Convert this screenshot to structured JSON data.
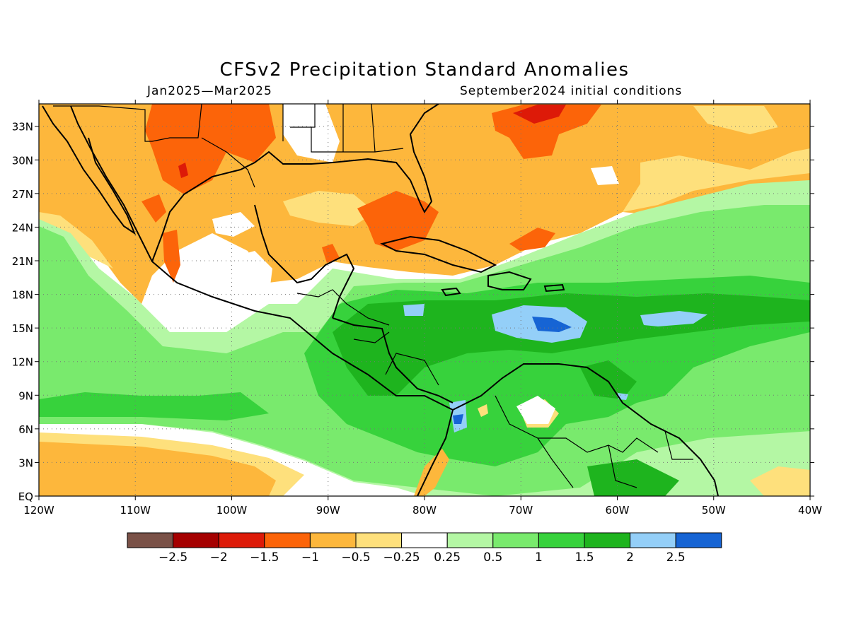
{
  "title": "CFSv2 Precipitation Standard Anomalies",
  "period": "Jan2025—Mar2025",
  "init": "September2024 initial conditions",
  "map": {
    "lon_range": [
      -120,
      -40
    ],
    "lat_range": [
      0,
      35
    ],
    "lat_ticks": [
      "33N",
      "30N",
      "27N",
      "24N",
      "21N",
      "18N",
      "15N",
      "12N",
      "9N",
      "6N",
      "3N",
      "EQ"
    ],
    "lon_ticks": [
      "120W",
      "110W",
      "100W",
      "90W",
      "80W",
      "70W",
      "60W",
      "50W",
      "40W"
    ],
    "grid": true
  },
  "legend": {
    "colors": [
      "#7a5147",
      "#a50000",
      "#dd1a08",
      "#fc6409",
      "#fdb73c",
      "#fee07c",
      "#ffffff",
      "#b4f7a4",
      "#79ea6d",
      "#37d23c",
      "#1eb41e",
      "#94cff8",
      "#1664d4"
    ],
    "labels": [
      "−2.5",
      "−2",
      "−1.5",
      "−1",
      "−0.5",
      "−0.25",
      "0.25",
      "0.5",
      "1",
      "1.5",
      "2",
      "2.5"
    ]
  },
  "chart_data": {
    "type": "heatmap",
    "title": "CFSv2 Precipitation Standard Anomalies",
    "subtitle_left": "Jan2025—Mar2025",
    "subtitle_right": "September2024 initial conditions",
    "x_extent": [
      -120,
      -40
    ],
    "y_extent": [
      0,
      35
    ],
    "color_levels": [
      -2.5,
      -2,
      -1.5,
      -1,
      -0.5,
      -0.25,
      0.25,
      0.5,
      1,
      1.5,
      2,
      2.5
    ]
  }
}
